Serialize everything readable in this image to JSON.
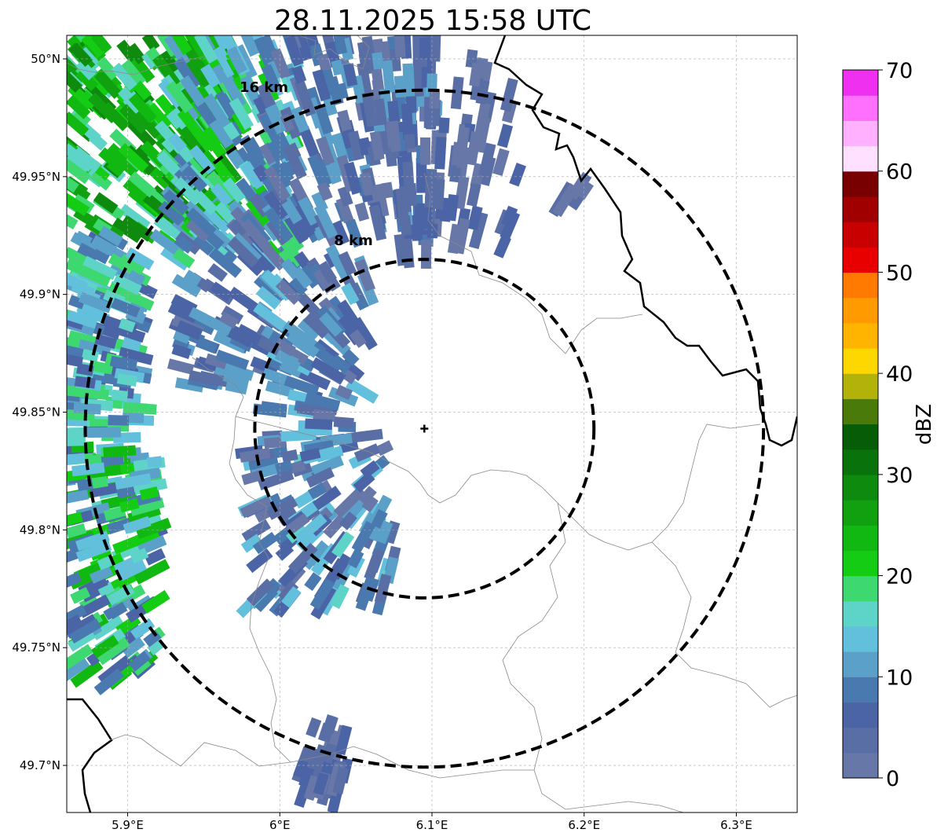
{
  "title": "28.11.2025 15:58 UTC",
  "map": {
    "lon_range": [
      5.86,
      6.34
    ],
    "lat_range": [
      49.68,
      50.01
    ],
    "lon_ticks": [
      {
        "value": 5.9,
        "label": "5.9°E"
      },
      {
        "value": 6.0,
        "label": "6°E"
      },
      {
        "value": 6.1,
        "label": "6.1°E"
      },
      {
        "value": 6.2,
        "label": "6.2°E"
      },
      {
        "value": 6.3,
        "label": "6.3°E"
      }
    ],
    "lat_ticks": [
      {
        "value": 50.0,
        "label": "50°N"
      },
      {
        "value": 49.95,
        "label": "49.95°N"
      },
      {
        "value": 49.9,
        "label": "49.9°N"
      },
      {
        "value": 49.85,
        "label": "49.85°N"
      },
      {
        "value": 49.8,
        "label": "49.8°N"
      },
      {
        "value": 49.75,
        "label": "49.75°N"
      },
      {
        "value": 49.7,
        "label": "49.7°N"
      }
    ],
    "radar_site": {
      "lon": 6.095,
      "lat": 49.843
    },
    "range_rings": [
      {
        "radius_km": 8,
        "label": "8 km"
      },
      {
        "radius_km": 16,
        "label": "16 km"
      }
    ]
  },
  "colorbar": {
    "label": "dBZ",
    "min": 0,
    "max": 70,
    "ticks": [
      0,
      10,
      20,
      30,
      40,
      50,
      60,
      70
    ],
    "colors": [
      "#6677a8",
      "#5a6ea6",
      "#4a64a6",
      "#4a79b0",
      "#5aa0c8",
      "#62c0dc",
      "#5ed4c8",
      "#3ed870",
      "#14cc14",
      "#12b812",
      "#10a010",
      "#0e8a0e",
      "#0a720a",
      "#075c07",
      "#4a7a0a",
      "#b2b20a",
      "#ffd700",
      "#ffb400",
      "#ff9a00",
      "#ff7a00",
      "#e80000",
      "#c80000",
      "#a00000",
      "#780000",
      "#ffe0ff",
      "#ffb0ff",
      "#ff70ff",
      "#f030f0"
    ]
  }
}
